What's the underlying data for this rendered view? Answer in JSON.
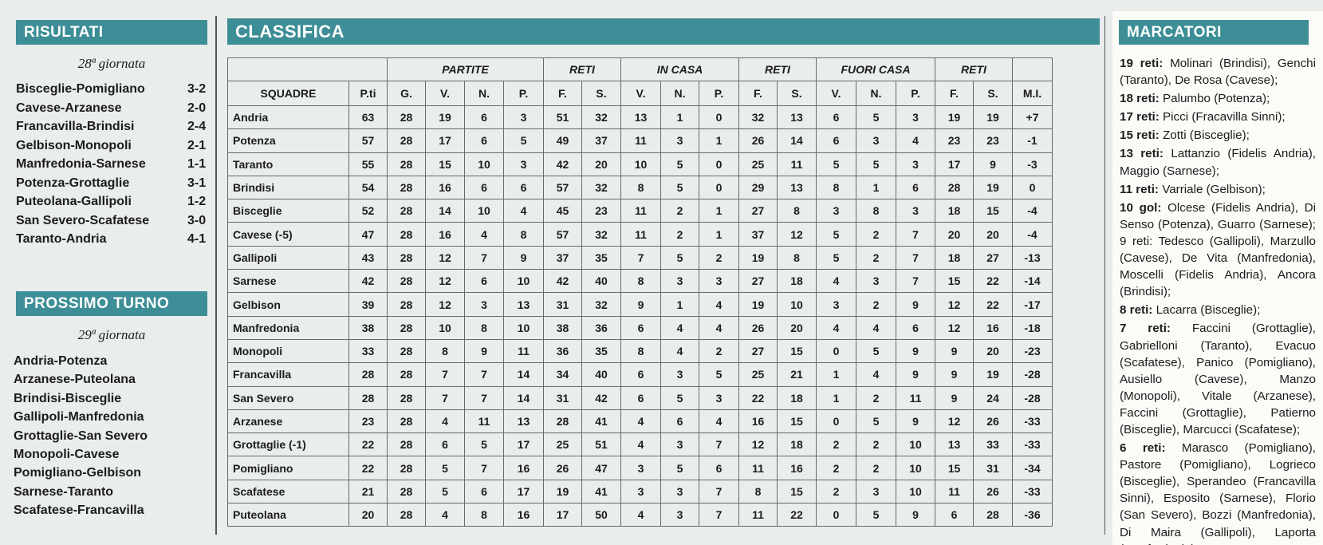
{
  "risultati": {
    "title": "RISULTATI",
    "giornata": "28ª giornata",
    "matches": [
      {
        "match": "Bisceglie-Pomigliano",
        "score": "3-2"
      },
      {
        "match": "Cavese-Arzanese",
        "score": "2-0"
      },
      {
        "match": "Francavilla-Brindisi",
        "score": "2-4"
      },
      {
        "match": "Gelbison-Monopoli",
        "score": "2-1"
      },
      {
        "match": "Manfredonia-Sarnese",
        "score": "1-1"
      },
      {
        "match": "Potenza-Grottaglie",
        "score": "3-1"
      },
      {
        "match": "Puteolana-Gallipoli",
        "score": "1-2"
      },
      {
        "match": "San Severo-Scafatese",
        "score": "3-0"
      },
      {
        "match": "Taranto-Andria",
        "score": "4-1"
      }
    ]
  },
  "prossimo": {
    "title": "PROSSIMO TURNO",
    "giornata": "29ª giornata",
    "matches": [
      "Andria-Potenza",
      "Arzanese-Puteolana",
      "Brindisi-Bisceglie",
      "Gallipoli-Manfredonia",
      "Grottaglie-San Severo",
      "Monopoli-Cavese",
      "Pomigliano-Gelbison",
      "Sarnese-Taranto",
      "Scafatese-Francavilla"
    ]
  },
  "classifica": {
    "title": "CLASSIFICA",
    "groups": [
      "PARTITE",
      "RETI",
      "IN CASA",
      "RETI",
      "FUORI CASA",
      "RETI"
    ],
    "columns": [
      "SQUADRE",
      "P.ti",
      "G.",
      "V.",
      "N.",
      "P.",
      "F.",
      "S.",
      "V.",
      "N.",
      "P.",
      "F.",
      "S.",
      "V.",
      "N.",
      "P.",
      "F.",
      "S.",
      "M.I."
    ],
    "rows": [
      [
        "Andria",
        "63",
        "28",
        "19",
        "6",
        "3",
        "51",
        "32",
        "13",
        "1",
        "0",
        "32",
        "13",
        "6",
        "5",
        "3",
        "19",
        "19",
        "+7"
      ],
      [
        "Potenza",
        "57",
        "28",
        "17",
        "6",
        "5",
        "49",
        "37",
        "11",
        "3",
        "1",
        "26",
        "14",
        "6",
        "3",
        "4",
        "23",
        "23",
        "-1"
      ],
      [
        "Taranto",
        "55",
        "28",
        "15",
        "10",
        "3",
        "42",
        "20",
        "10",
        "5",
        "0",
        "25",
        "11",
        "5",
        "5",
        "3",
        "17",
        "9",
        "-3"
      ],
      [
        "Brindisi",
        "54",
        "28",
        "16",
        "6",
        "6",
        "57",
        "32",
        "8",
        "5",
        "0",
        "29",
        "13",
        "8",
        "1",
        "6",
        "28",
        "19",
        "0"
      ],
      [
        "Bisceglie",
        "52",
        "28",
        "14",
        "10",
        "4",
        "45",
        "23",
        "11",
        "2",
        "1",
        "27",
        "8",
        "3",
        "8",
        "3",
        "18",
        "15",
        "-4"
      ],
      [
        "Cavese (-5)",
        "47",
        "28",
        "16",
        "4",
        "8",
        "57",
        "32",
        "11",
        "2",
        "1",
        "37",
        "12",
        "5",
        "2",
        "7",
        "20",
        "20",
        "-4"
      ],
      [
        "Gallipoli",
        "43",
        "28",
        "12",
        "7",
        "9",
        "37",
        "35",
        "7",
        "5",
        "2",
        "19",
        "8",
        "5",
        "2",
        "7",
        "18",
        "27",
        "-13"
      ],
      [
        "Sarnese",
        "42",
        "28",
        "12",
        "6",
        "10",
        "42",
        "40",
        "8",
        "3",
        "3",
        "27",
        "18",
        "4",
        "3",
        "7",
        "15",
        "22",
        "-14"
      ],
      [
        "Gelbison",
        "39",
        "28",
        "12",
        "3",
        "13",
        "31",
        "32",
        "9",
        "1",
        "4",
        "19",
        "10",
        "3",
        "2",
        "9",
        "12",
        "22",
        "-17"
      ],
      [
        "Manfredonia",
        "38",
        "28",
        "10",
        "8",
        "10",
        "38",
        "36",
        "6",
        "4",
        "4",
        "26",
        "20",
        "4",
        "4",
        "6",
        "12",
        "16",
        "-18"
      ],
      [
        "Monopoli",
        "33",
        "28",
        "8",
        "9",
        "11",
        "36",
        "35",
        "8",
        "4",
        "2",
        "27",
        "15",
        "0",
        "5",
        "9",
        "9",
        "20",
        "-23"
      ],
      [
        "Francavilla",
        "28",
        "28",
        "7",
        "7",
        "14",
        "34",
        "40",
        "6",
        "3",
        "5",
        "25",
        "21",
        "1",
        "4",
        "9",
        "9",
        "19",
        "-28"
      ],
      [
        "San Severo",
        "28",
        "28",
        "7",
        "7",
        "14",
        "31",
        "42",
        "6",
        "5",
        "3",
        "22",
        "18",
        "1",
        "2",
        "11",
        "9",
        "24",
        "-28"
      ],
      [
        "Arzanese",
        "23",
        "28",
        "4",
        "11",
        "13",
        "28",
        "41",
        "4",
        "6",
        "4",
        "16",
        "15",
        "0",
        "5",
        "9",
        "12",
        "26",
        "-33"
      ],
      [
        "Grottaglie (-1)",
        "22",
        "28",
        "6",
        "5",
        "17",
        "25",
        "51",
        "4",
        "3",
        "7",
        "12",
        "18",
        "2",
        "2",
        "10",
        "13",
        "33",
        "-33"
      ],
      [
        "Pomigliano",
        "22",
        "28",
        "5",
        "7",
        "16",
        "26",
        "47",
        "3",
        "5",
        "6",
        "11",
        "16",
        "2",
        "2",
        "10",
        "15",
        "31",
        "-34"
      ],
      [
        "Scafatese",
        "21",
        "28",
        "5",
        "6",
        "17",
        "19",
        "41",
        "3",
        "3",
        "7",
        "8",
        "15",
        "2",
        "3",
        "10",
        "11",
        "26",
        "-33"
      ],
      [
        "Puteolana",
        "20",
        "28",
        "4",
        "8",
        "16",
        "17",
        "50",
        "4",
        "3",
        "7",
        "11",
        "22",
        "0",
        "5",
        "9",
        "6",
        "28",
        "-36"
      ]
    ]
  },
  "marcatori": {
    "title": "MARCATORI",
    "entries": [
      {
        "label": "19 reti:",
        "text": " Molinari (Brindisi), Genchi (Taranto), De Rosa (Cavese);"
      },
      {
        "label": "18 reti:",
        "text": " Palumbo (Potenza);"
      },
      {
        "label": "17 reti:",
        "text": " Picci (Fracavilla Sinni);"
      },
      {
        "label": "15 reti:",
        "text": " Zotti (Bisceglie);"
      },
      {
        "label": "13 reti:",
        "text": " Lattanzio (Fidelis Andria), Maggio (Sarnese);"
      },
      {
        "label": "11 reti:",
        "text": " Varriale (Gelbison);"
      },
      {
        "label": "10 gol:",
        "text": " Olcese (Fidelis Andria), Di Senso (Potenza), Guarro (Sarnese); 9 reti: Tedesco (Gallipoli), Marzullo (Cavese), De Vita (Manfredonia), Moscelli (Fidelis Andria), Ancora (Brindisi);"
      },
      {
        "label": "8 reti:",
        "text": " Lacarra (Bisceglie);"
      },
      {
        "label": "7 reti:",
        "text": " Faccini (Grottaglie), Gabrielloni (Taranto), Evacuo (Scafatese), Panico (Pomigliano), Ausiello (Cavese), Manzo (Monopoli), Vitale (Arzanese), Faccini (Grottaglie), Patierno (Bisceglie), Marcucci (Scafatese);"
      },
      {
        "label": "6 reti:",
        "text": " Marasco (Pomigliano), Pastore (Pomigliano), Logrieco (Bisceglie), Sperandeo (Francavilla Sinni), Esposito (Sarnese), Florio (San Severo), Bozzi (Manfredonia), Di Maira (Gallipoli), Laporta (Manfredonia)."
      }
    ]
  }
}
